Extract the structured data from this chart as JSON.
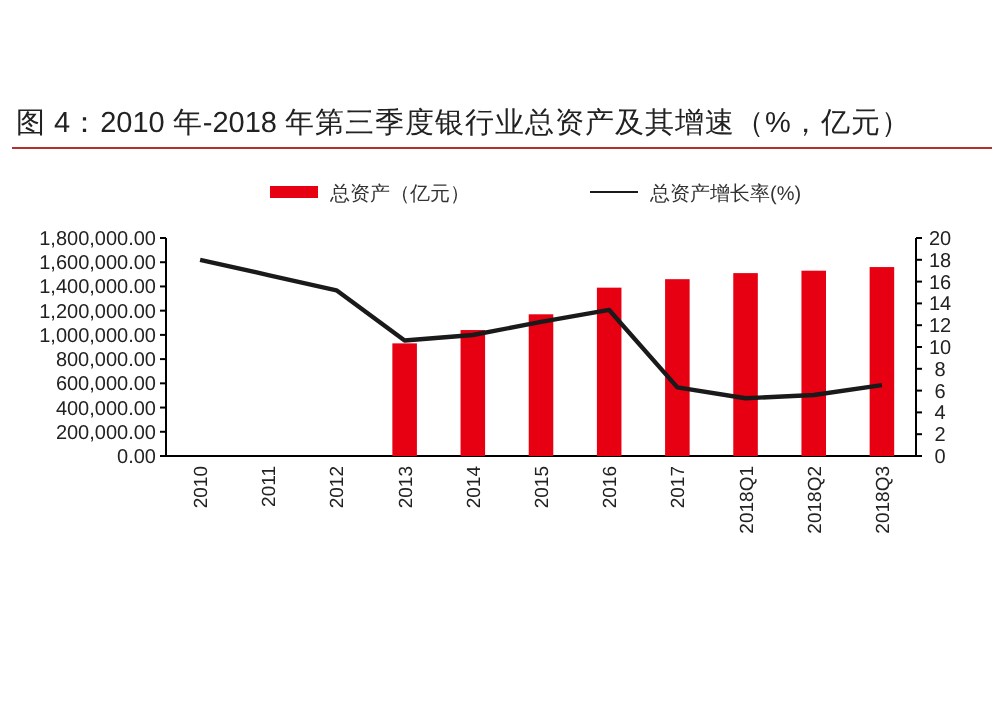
{
  "chart_data": {
    "type": "bar",
    "title": "图 4：2010 年-2018 年第三季度银行业总资产及其增速（%，亿元）",
    "categories": [
      "2010",
      "2011",
      "2012",
      "2013",
      "2014",
      "2015",
      "2016",
      "2017",
      "2018Q1",
      "2018Q2",
      "2018Q3"
    ],
    "series": [
      {
        "name": "总资产（亿元）",
        "color": "#e60012",
        "values": [
          null,
          null,
          null,
          930000,
          1040000,
          1170000,
          1390000,
          1460000,
          1510000,
          1530000,
          1560000
        ]
      },
      {
        "name": "总资产增长率(%)",
        "type": "line",
        "axis": "y2",
        "color": "#1a1a1a",
        "values": [
          18.0,
          16.6,
          15.2,
          10.6,
          11.1,
          12.3,
          13.4,
          6.3,
          5.3,
          5.6,
          6.5
        ]
      }
    ],
    "ylim": [
      0,
      1800000
    ],
    "yticks": [
      {
        "value": 0,
        "label": "0.00"
      },
      {
        "value": 200000,
        "label": "200,000.00"
      },
      {
        "value": 400000,
        "label": "400,000.00"
      },
      {
        "value": 600000,
        "label": "600,000.00"
      },
      {
        "value": 800000,
        "label": "800,000.00"
      },
      {
        "value": 1000000,
        "label": "1,000,000.00"
      },
      {
        "value": 1200000,
        "label": "1,200,000.00"
      },
      {
        "value": 1400000,
        "label": "1,400,000.00"
      },
      {
        "value": 1600000,
        "label": "1,600,000.00"
      },
      {
        "value": 1800000,
        "label": "1,800,000.00"
      }
    ],
    "y2lim": [
      0,
      20
    ],
    "y2ticks": [
      0,
      2,
      4,
      6,
      8,
      10,
      12,
      14,
      16,
      18,
      20
    ],
    "legend": "top",
    "grid": false
  }
}
